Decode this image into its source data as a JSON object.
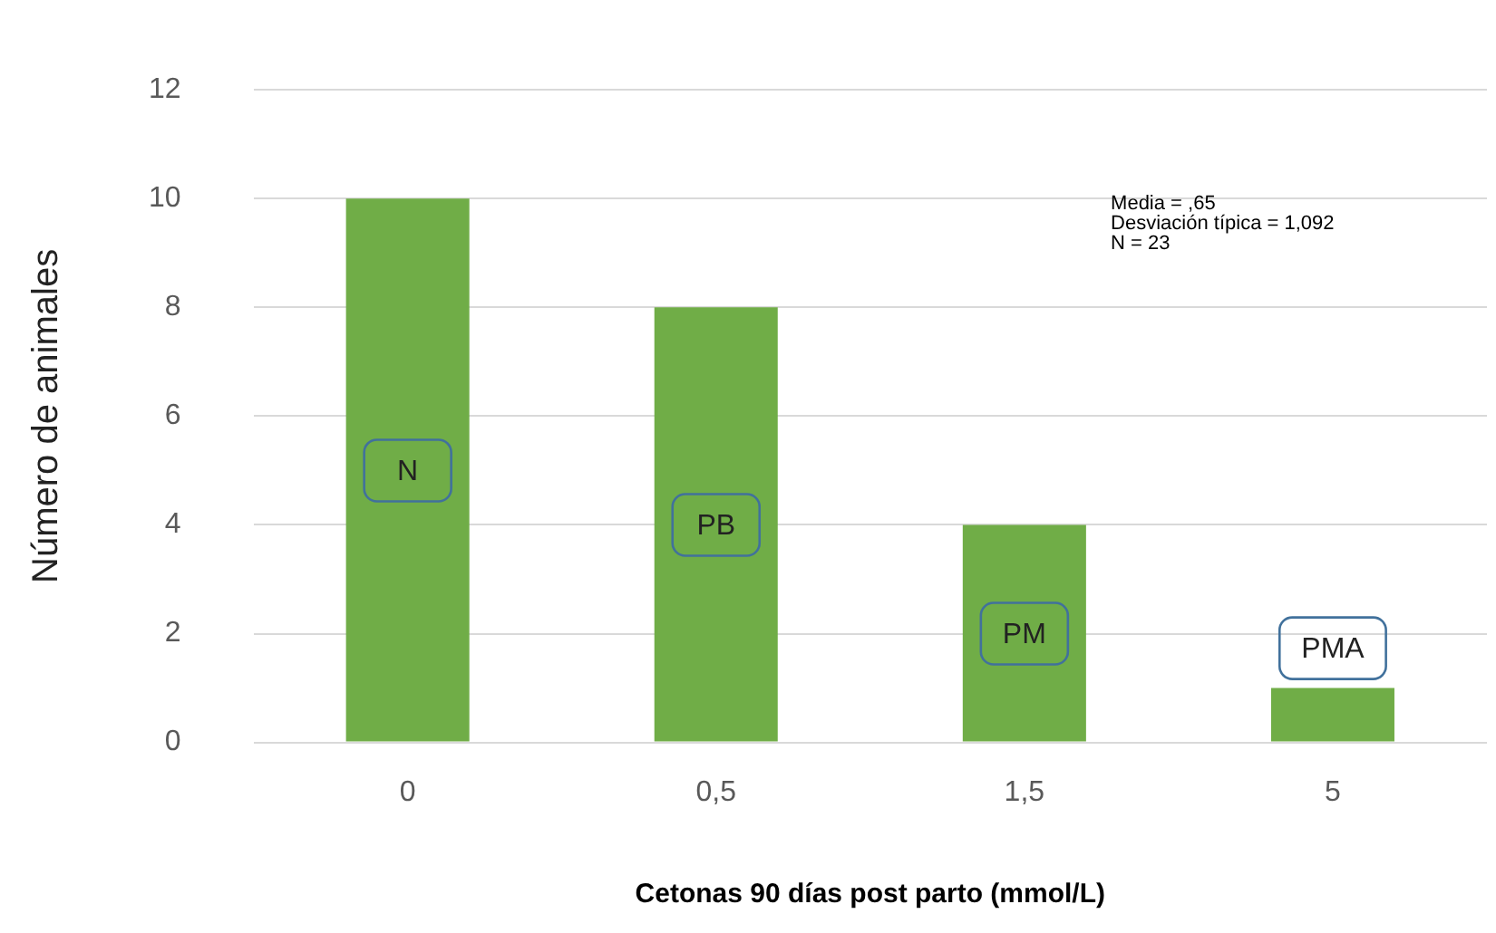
{
  "chart_data": {
    "type": "bar",
    "xlabel": "Cetonas 90 días post parto (mmol/L)",
    "ylabel": "Número de animales",
    "categories": [
      "0",
      "0,5",
      "1,5",
      "5"
    ],
    "values": [
      10,
      8,
      4,
      1
    ],
    "color": "#70ad47",
    "ylim": [
      0,
      12
    ],
    "yticks": [
      0,
      2,
      4,
      6,
      8,
      10,
      12
    ],
    "grid": "y",
    "annotations": [
      "Media = ,65",
      "Desviación típica = 1,092",
      "N = 23",
      "N",
      "PB",
      "PM",
      "PMA"
    ]
  }
}
